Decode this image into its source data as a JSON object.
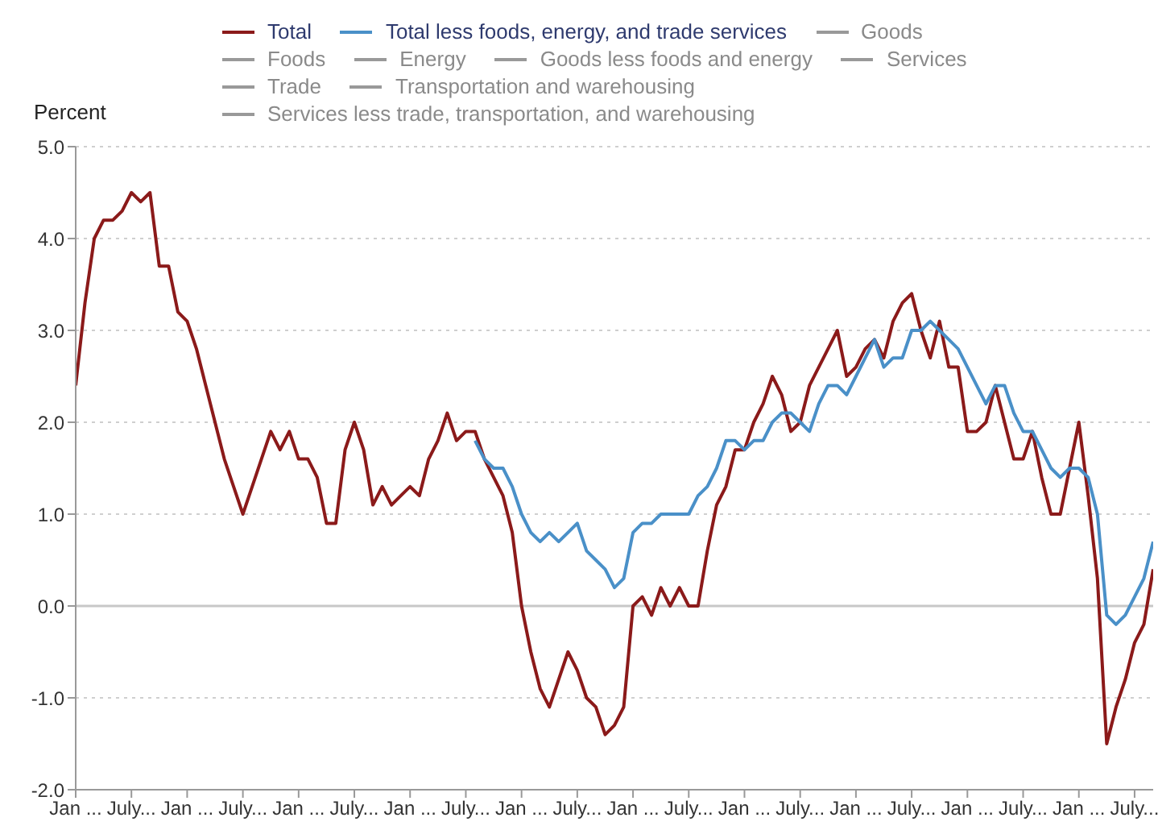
{
  "chart_data": {
    "type": "line",
    "ylabel": "Percent",
    "categories": [
      "Jan ...",
      null,
      null,
      null,
      null,
      null,
      "July...",
      null,
      null,
      null,
      null,
      null,
      "Jan ...",
      null,
      null,
      null,
      null,
      null,
      "July...",
      null,
      null,
      null,
      null,
      null,
      "Jan ...",
      null,
      null,
      null,
      null,
      null,
      "July...",
      null,
      null,
      null,
      null,
      null,
      "Jan ...",
      null,
      null,
      null,
      null,
      null,
      "July...",
      null,
      null,
      null,
      null,
      null,
      "Jan ...",
      null,
      null,
      null,
      null,
      null,
      "July...",
      null,
      null,
      null,
      null,
      null,
      "Jan ...",
      null,
      null,
      null,
      null,
      null,
      "July...",
      null,
      null,
      null,
      null,
      null,
      "Jan ...",
      null,
      null,
      null,
      null,
      null,
      "July...",
      null,
      null,
      null,
      null,
      null,
      "Jan ...",
      null,
      null,
      null,
      null,
      null,
      "July...",
      null,
      null,
      null,
      null,
      null,
      "Jan ...",
      null,
      null,
      null,
      null,
      null,
      "July...",
      null,
      null,
      null,
      null,
      null,
      "Jan ...",
      null,
      null,
      null,
      null,
      null,
      "July...",
      null,
      null
    ],
    "series": [
      {
        "name": "Total",
        "color": "#8b1a1a",
        "values": [
          2.4,
          3.3,
          4.0,
          4.2,
          4.2,
          4.3,
          4.5,
          4.4,
          4.5,
          3.7,
          3.7,
          3.2,
          3.1,
          2.8,
          2.4,
          2.0,
          1.6,
          1.3,
          1.0,
          1.3,
          1.6,
          1.9,
          1.7,
          1.9,
          1.6,
          1.6,
          1.4,
          0.9,
          0.9,
          1.7,
          2.0,
          1.7,
          1.1,
          1.3,
          1.1,
          1.2,
          1.3,
          1.2,
          1.6,
          1.8,
          2.1,
          1.8,
          1.9,
          1.9,
          1.6,
          1.4,
          1.2,
          0.8,
          0.0,
          -0.5,
          -0.9,
          -1.1,
          -0.8,
          -0.5,
          -0.7,
          -1.0,
          -1.1,
          -1.4,
          -1.3,
          -1.1,
          0.0,
          0.1,
          -0.1,
          0.2,
          0.0,
          0.2,
          0.0,
          0.0,
          0.6,
          1.1,
          1.3,
          1.7,
          1.7,
          2.0,
          2.2,
          2.5,
          2.3,
          1.9,
          2.0,
          2.4,
          2.6,
          2.8,
          3.0,
          2.5,
          2.6,
          2.8,
          2.9,
          2.7,
          3.1,
          3.3,
          3.4,
          3.0,
          2.7,
          3.1,
          2.6,
          2.6,
          1.9,
          1.9,
          2.0,
          2.4,
          2.0,
          1.6,
          1.6,
          1.9,
          1.4,
          1.0,
          1.0,
          1.5,
          2.0,
          1.2,
          0.3,
          -1.5,
          -1.1,
          -0.8,
          -0.4,
          -0.2,
          0.4
        ]
      },
      {
        "name": "Total less foods, energy, and trade services",
        "color": "#4a90c8",
        "values": [
          null,
          null,
          null,
          null,
          null,
          null,
          null,
          null,
          null,
          null,
          null,
          null,
          null,
          null,
          null,
          null,
          null,
          null,
          null,
          null,
          null,
          null,
          null,
          null,
          null,
          null,
          null,
          null,
          null,
          null,
          null,
          null,
          null,
          null,
          null,
          null,
          null,
          null,
          null,
          null,
          null,
          null,
          null,
          1.8,
          1.6,
          1.5,
          1.5,
          1.3,
          1.0,
          0.8,
          0.7,
          0.8,
          0.7,
          0.8,
          0.9,
          0.6,
          0.5,
          0.4,
          0.2,
          0.3,
          0.8,
          0.9,
          0.9,
          1.0,
          1.0,
          1.0,
          1.0,
          1.2,
          1.3,
          1.5,
          1.8,
          1.8,
          1.7,
          1.8,
          1.8,
          2.0,
          2.1,
          2.1,
          2.0,
          1.9,
          2.2,
          2.4,
          2.4,
          2.3,
          2.5,
          2.7,
          2.9,
          2.6,
          2.7,
          2.7,
          3.0,
          3.0,
          3.1,
          3.0,
          2.9,
          2.8,
          2.6,
          2.4,
          2.2,
          2.4,
          2.4,
          2.1,
          1.9,
          1.9,
          1.7,
          1.5,
          1.4,
          1.5,
          1.5,
          1.4,
          1.0,
          -0.1,
          -0.2,
          -0.1,
          0.1,
          0.3,
          0.7
        ]
      },
      {
        "name": "Goods",
        "color": "#999999",
        "values": [
          null,
          null,
          null,
          null,
          null,
          null,
          null,
          null,
          null,
          null,
          null,
          null,
          null,
          null,
          null,
          null,
          null,
          null,
          null,
          null,
          null,
          null,
          null,
          null,
          null,
          null,
          null,
          null,
          null,
          null,
          null,
          null,
          null,
          null,
          null,
          null,
          null,
          null,
          null,
          null,
          null,
          null,
          null,
          null,
          null,
          null,
          null,
          null,
          null,
          null,
          null,
          null,
          null,
          null,
          null,
          null,
          null,
          null,
          null,
          null,
          null,
          null,
          null,
          null,
          null,
          null,
          null,
          null,
          null,
          null,
          null,
          null,
          null,
          null,
          null,
          null,
          null,
          null,
          null,
          null,
          null,
          null,
          null,
          null,
          null,
          null,
          null,
          null,
          null,
          null,
          null,
          null,
          null,
          null,
          null,
          null,
          null,
          null,
          null,
          null,
          null,
          null,
          null,
          null,
          null,
          null,
          null,
          null,
          null,
          null,
          null,
          null,
          null,
          null,
          null,
          null,
          null
        ]
      },
      {
        "name": "Foods",
        "color": "#999999",
        "values": [
          null,
          null,
          null,
          null,
          null,
          null,
          null,
          null,
          null,
          null,
          null,
          null,
          null,
          null,
          null,
          null,
          null,
          null,
          null,
          null,
          null,
          null,
          null,
          null,
          null,
          null,
          null,
          null,
          null,
          null,
          null,
          null,
          null,
          null,
          null,
          null,
          null,
          null,
          null,
          null,
          null,
          null,
          null,
          null,
          null,
          null,
          null,
          null,
          null,
          null,
          null,
          null,
          null,
          null,
          null,
          null,
          null,
          null,
          null,
          null,
          null,
          null,
          null,
          null,
          null,
          null,
          null,
          null,
          null,
          null,
          null,
          null,
          null,
          null,
          null,
          null,
          null,
          null,
          null,
          null,
          null,
          null,
          null,
          null,
          null,
          null,
          null,
          null,
          null,
          null,
          null,
          null,
          null,
          null,
          null,
          null,
          null,
          null,
          null,
          null,
          null,
          null,
          null,
          null,
          null,
          null,
          null,
          null,
          null,
          null,
          null,
          null,
          null,
          null,
          null,
          null,
          null
        ]
      },
      {
        "name": "Energy",
        "color": "#999999",
        "values": [
          null,
          null,
          null,
          null,
          null,
          null,
          null,
          null,
          null,
          null,
          null,
          null,
          null,
          null,
          null,
          null,
          null,
          null,
          null,
          null,
          null,
          null,
          null,
          null,
          null,
          null,
          null,
          null,
          null,
          null,
          null,
          null,
          null,
          null,
          null,
          null,
          null,
          null,
          null,
          null,
          null,
          null,
          null,
          null,
          null,
          null,
          null,
          null,
          null,
          null,
          null,
          null,
          null,
          null,
          null,
          null,
          null,
          null,
          null,
          null,
          null,
          null,
          null,
          null,
          null,
          null,
          null,
          null,
          null,
          null,
          null,
          null,
          null,
          null,
          null,
          null,
          null,
          null,
          null,
          null,
          null,
          null,
          null,
          null,
          null,
          null,
          null,
          null,
          null,
          null,
          null,
          null,
          null,
          null,
          null,
          null,
          null,
          null,
          null,
          null,
          null,
          null,
          null,
          null,
          null,
          null,
          null,
          null,
          null,
          null,
          null,
          null,
          null,
          null,
          null,
          null,
          null
        ]
      },
      {
        "name": "Goods less foods and energy",
        "color": "#999999",
        "values": [
          null,
          null,
          null,
          null,
          null,
          null,
          null,
          null,
          null,
          null,
          null,
          null,
          null,
          null,
          null,
          null,
          null,
          null,
          null,
          null,
          null,
          null,
          null,
          null,
          null,
          null,
          null,
          null,
          null,
          null,
          null,
          null,
          null,
          null,
          null,
          null,
          null,
          null,
          null,
          null,
          null,
          null,
          null,
          null,
          null,
          null,
          null,
          null,
          null,
          null,
          null,
          null,
          null,
          null,
          null,
          null,
          null,
          null,
          null,
          null,
          null,
          null,
          null,
          null,
          null,
          null,
          null,
          null,
          null,
          null,
          null,
          null,
          null,
          null,
          null,
          null,
          null,
          null,
          null,
          null,
          null,
          null,
          null,
          null,
          null,
          null,
          null,
          null,
          null,
          null,
          null,
          null,
          null,
          null,
          null,
          null,
          null,
          null,
          null,
          null,
          null,
          null,
          null,
          null,
          null,
          null,
          null,
          null,
          null,
          null,
          null,
          null,
          null,
          null,
          null,
          null,
          null
        ]
      },
      {
        "name": "Services",
        "color": "#999999",
        "values": [
          null,
          null,
          null,
          null,
          null,
          null,
          null,
          null,
          null,
          null,
          null,
          null,
          null,
          null,
          null,
          null,
          null,
          null,
          null,
          null,
          null,
          null,
          null,
          null,
          null,
          null,
          null,
          null,
          null,
          null,
          null,
          null,
          null,
          null,
          null,
          null,
          null,
          null,
          null,
          null,
          null,
          null,
          null,
          null,
          null,
          null,
          null,
          null,
          null,
          null,
          null,
          null,
          null,
          null,
          null,
          null,
          null,
          null,
          null,
          null,
          null,
          null,
          null,
          null,
          null,
          null,
          null,
          null,
          null,
          null,
          null,
          null,
          null,
          null,
          null,
          null,
          null,
          null,
          null,
          null,
          null,
          null,
          null,
          null,
          null,
          null,
          null,
          null,
          null,
          null,
          null,
          null,
          null,
          null,
          null,
          null,
          null,
          null,
          null,
          null,
          null,
          null,
          null,
          null,
          null,
          null,
          null,
          null,
          null,
          null,
          null,
          null,
          null,
          null,
          null,
          null,
          null
        ]
      },
      {
        "name": "Trade",
        "color": "#999999",
        "values": [
          null,
          null,
          null,
          null,
          null,
          null,
          null,
          null,
          null,
          null,
          null,
          null,
          null,
          null,
          null,
          null,
          null,
          null,
          null,
          null,
          null,
          null,
          null,
          null,
          null,
          null,
          null,
          null,
          null,
          null,
          null,
          null,
          null,
          null,
          null,
          null,
          null,
          null,
          null,
          null,
          null,
          null,
          null,
          null,
          null,
          null,
          null,
          null,
          null,
          null,
          null,
          null,
          null,
          null,
          null,
          null,
          null,
          null,
          null,
          null,
          null,
          null,
          null,
          null,
          null,
          null,
          null,
          null,
          null,
          null,
          null,
          null,
          null,
          null,
          null,
          null,
          null,
          null,
          null,
          null,
          null,
          null,
          null,
          null,
          null,
          null,
          null,
          null,
          null,
          null,
          null,
          null,
          null,
          null,
          null,
          null,
          null,
          null,
          null,
          null,
          null,
          null,
          null,
          null,
          null,
          null,
          null,
          null,
          null,
          null,
          null,
          null,
          null,
          null,
          null,
          null,
          null
        ]
      },
      {
        "name": "Transportation and warehousing",
        "color": "#999999",
        "values": [
          null,
          null,
          null,
          null,
          null,
          null,
          null,
          null,
          null,
          null,
          null,
          null,
          null,
          null,
          null,
          null,
          null,
          null,
          null,
          null,
          null,
          null,
          null,
          null,
          null,
          null,
          null,
          null,
          null,
          null,
          null,
          null,
          null,
          null,
          null,
          null,
          null,
          null,
          null,
          null,
          null,
          null,
          null,
          null,
          null,
          null,
          null,
          null,
          null,
          null,
          null,
          null,
          null,
          null,
          null,
          null,
          null,
          null,
          null,
          null,
          null,
          null,
          null,
          null,
          null,
          null,
          null,
          null,
          null,
          null,
          null,
          null,
          null,
          null,
          null,
          null,
          null,
          null,
          null,
          null,
          null,
          null,
          null,
          null,
          null,
          null,
          null,
          null,
          null,
          null,
          null,
          null,
          null,
          null,
          null,
          null,
          null,
          null,
          null,
          null,
          null,
          null,
          null,
          null,
          null,
          null,
          null,
          null,
          null,
          null,
          null,
          null,
          null,
          null,
          null,
          null,
          null
        ]
      },
      {
        "name": "Services less trade, transportation, and warehousing",
        "color": "#999999",
        "values": [
          null,
          null,
          null,
          null,
          null,
          null,
          null,
          null,
          null,
          null,
          null,
          null,
          null,
          null,
          null,
          null,
          null,
          null,
          null,
          null,
          null,
          null,
          null,
          null,
          null,
          null,
          null,
          null,
          null,
          null,
          null,
          null,
          null,
          null,
          null,
          null,
          null,
          null,
          null,
          null,
          null,
          null,
          null,
          null,
          null,
          null,
          null,
          null,
          null,
          null,
          null,
          null,
          null,
          null,
          null,
          null,
          null,
          null,
          null,
          null,
          null,
          null,
          null,
          null,
          null,
          null,
          null,
          null,
          null,
          null,
          null,
          null,
          null,
          null,
          null,
          null,
          null,
          null,
          null,
          null,
          null,
          null,
          null,
          null,
          null,
          null,
          null,
          null,
          null,
          null,
          null,
          null,
          null,
          null,
          null,
          null,
          null,
          null,
          null,
          null,
          null,
          null,
          null,
          null,
          null,
          null,
          null,
          null,
          null,
          null,
          null,
          null,
          null,
          null,
          null,
          null,
          null
        ]
      }
    ],
    "ylim": [
      -2,
      5
    ],
    "yticks": [
      {
        "value": -2,
        "label": "-2.0"
      },
      {
        "value": -1,
        "label": "-1.0"
      },
      {
        "value": 0,
        "label": "0.0"
      },
      {
        "value": 1,
        "label": "1.0"
      },
      {
        "value": 2,
        "label": "2.0"
      },
      {
        "value": 3,
        "label": "3.0"
      },
      {
        "value": 4,
        "label": "4.0"
      },
      {
        "value": 5,
        "label": "5.0"
      }
    ],
    "ref_lines": [
      {
        "axis": "y",
        "value": 0,
        "color": "#c8c8c8"
      }
    ],
    "grid": "y",
    "legend": "top",
    "marker": "none",
    "line_style": "solid"
  }
}
